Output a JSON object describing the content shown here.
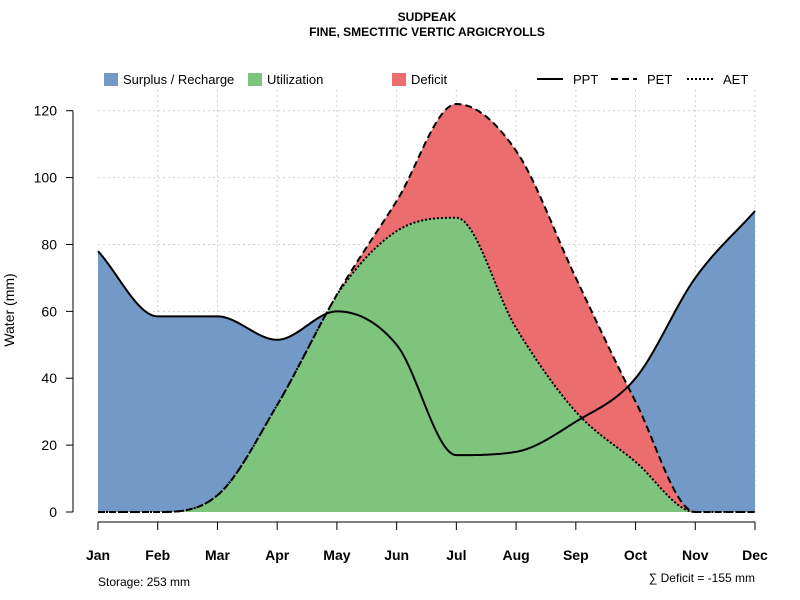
{
  "chart_data": {
    "type": "area",
    "title": "SUDPEAK",
    "subtitle": "FINE, SMECTITIC VERTIC ARGICRYOLLS",
    "ylabel": "Water (mm)",
    "xlabel": "",
    "ylim": [
      0,
      125
    ],
    "yticks": [
      0,
      20,
      40,
      60,
      80,
      100,
      120
    ],
    "categories": [
      "Jan",
      "Feb",
      "Mar",
      "Apr",
      "May",
      "Jun",
      "Jul",
      "Aug",
      "Sep",
      "Oct",
      "Nov",
      "Dec"
    ],
    "grid": true,
    "legend_position": "top",
    "legend": [
      {
        "label": "Surplus / Recharge",
        "kind": "fill",
        "color": "#7399C6"
      },
      {
        "label": "Utilization",
        "kind": "fill",
        "color": "#7FC47C"
      },
      {
        "label": "Deficit",
        "kind": "fill",
        "color": "#EB6D6D"
      },
      {
        "label": "PPT",
        "kind": "line",
        "dash": "solid"
      },
      {
        "label": "PET",
        "kind": "line",
        "dash": "dashed"
      },
      {
        "label": "AET",
        "kind": "line",
        "dash": "dotted"
      }
    ],
    "series": [
      {
        "name": "PPT",
        "values": [
          78,
          58.5,
          58.5,
          51.5,
          60,
          50,
          17,
          18,
          27,
          40,
          70,
          90
        ]
      },
      {
        "name": "PET",
        "values": [
          0,
          0,
          5,
          32,
          65,
          93,
          122,
          108,
          70,
          33,
          0,
          0
        ]
      },
      {
        "name": "AET",
        "values": [
          0,
          0,
          5,
          32,
          65,
          84,
          88,
          55,
          30,
          15,
          0,
          0
        ]
      }
    ],
    "footnotes": {
      "storage": "Storage: 253 mm",
      "deficit": "∑ Deficit = -155 mm"
    },
    "colors": {
      "surplus": "#7399C6",
      "utilization": "#7FC47C",
      "deficit": "#EB6D6D",
      "grid": "#D0D0D0",
      "line": "#000000"
    }
  }
}
